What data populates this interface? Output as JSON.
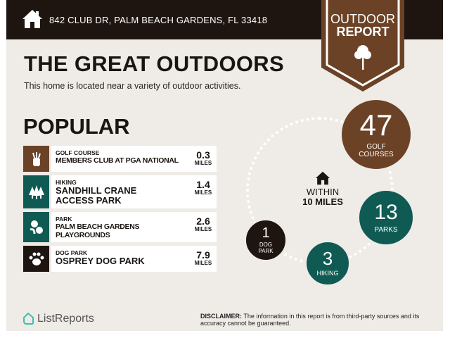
{
  "header": {
    "address": "842 CLUB DR, PALM BEACH GARDENS, FL 33418",
    "icon": "home-icon"
  },
  "banner": {
    "line1": "OUTDOOR",
    "line2": "REPORT",
    "icon": "tree-icon",
    "color": "#6b4226"
  },
  "intro": {
    "title": "THE GREAT OUTDOORS",
    "subtitle": "This home is located near a variety of outdoor activities."
  },
  "popular": {
    "heading": "POPULAR",
    "items": [
      {
        "category": "GOLF COURSE",
        "name": "MEMBERS CLUB AT PGA NATIONAL",
        "distance": "0.3",
        "unit": "MILES",
        "icon": "golf-bag-icon",
        "color": "#6b4226"
      },
      {
        "category": "HIKING",
        "name": "SANDHILL CRANE ACCESS PARK",
        "distance": "1.4",
        "unit": "MILES",
        "icon": "trees-icon",
        "color": "#0f5b54"
      },
      {
        "category": "PARK",
        "name": "PALM BEACH GARDENS PLAYGROUNDS",
        "distance": "2.6",
        "unit": "MILES",
        "icon": "park-icon",
        "color": "#0f5b54"
      },
      {
        "category": "DOG PARK",
        "name": "OSPREY DOG PARK",
        "distance": "7.9",
        "unit": "MILES",
        "icon": "paw-icon",
        "color": "#1e1511"
      }
    ]
  },
  "summary": {
    "within_line1": "WITHIN",
    "within_line2": "10 MILES",
    "counts": [
      {
        "value": "47",
        "label1": "GOLF",
        "label2": "COURSES",
        "color": "#6b4226"
      },
      {
        "value": "13",
        "label1": "PARKS",
        "label2": "",
        "color": "#0f5b54"
      },
      {
        "value": "3",
        "label1": "HIKING",
        "label2": "",
        "color": "#0f5b54"
      },
      {
        "value": "1",
        "label1": "DOG",
        "label2": "PARK",
        "color": "#1e1511"
      }
    ]
  },
  "footer": {
    "logo": "ListReports",
    "disclaimer_label": "DISCLAIMER:",
    "disclaimer": " The information in this report is from third-party sources and its accuracy cannot be guaranteed."
  }
}
